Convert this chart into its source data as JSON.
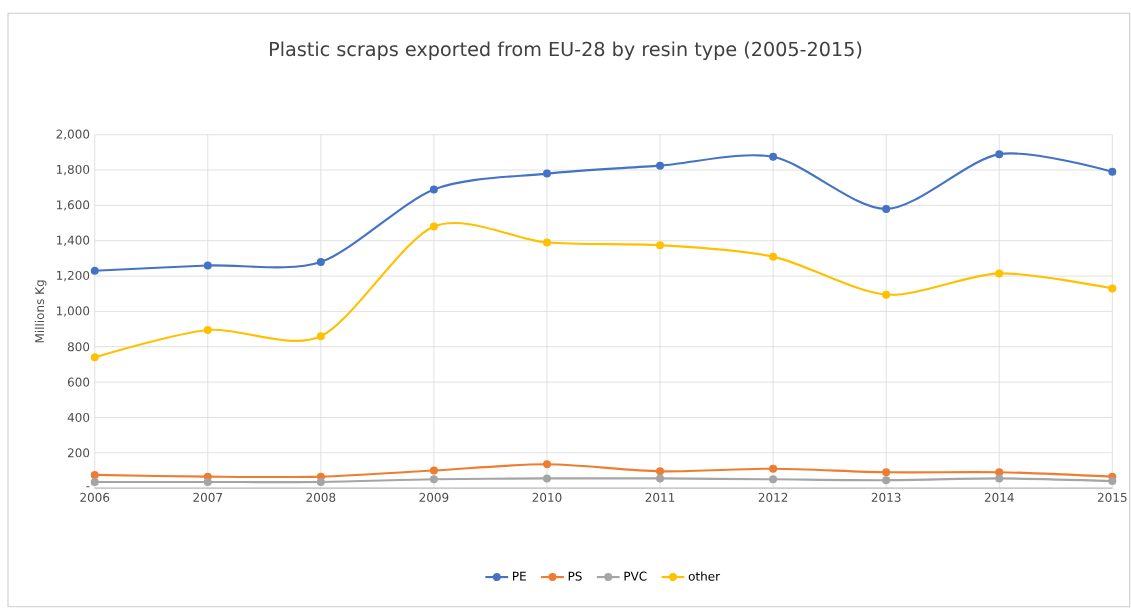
{
  "chart_data": {
    "type": "line",
    "title": "Plastic scraps exported from EU-28 by resin type (2005-2015)",
    "ylabel": "Millions Kg",
    "categories": [
      "2006",
      "2007",
      "2008",
      "2009",
      "2010",
      "2011",
      "2012",
      "2013",
      "2014",
      "2015"
    ],
    "series": [
      {
        "name": "PE",
        "color": "#4472c4",
        "values": [
          1230,
          1260,
          1280,
          1690,
          1780,
          1825,
          1875,
          1580,
          1890,
          1790
        ]
      },
      {
        "name": "PS",
        "color": "#ed7d31",
        "values": [
          75,
          65,
          65,
          100,
          135,
          95,
          110,
          90,
          90,
          65
        ]
      },
      {
        "name": "PVC",
        "color": "#a5a5a5",
        "values": [
          35,
          35,
          35,
          50,
          55,
          55,
          50,
          45,
          55,
          40
        ]
      },
      {
        "name": "other",
        "color": "#ffc000",
        "values": [
          740,
          895,
          860,
          1480,
          1390,
          1375,
          1310,
          1095,
          1215,
          1130
        ]
      }
    ],
    "ylim": [
      0,
      2000
    ],
    "yticks": [
      {
        "value": 0,
        "label": "-"
      },
      200,
      400,
      600,
      800,
      {
        "value": 1000,
        "label": "1,000"
      },
      {
        "value": 1200,
        "label": "1,200"
      },
      {
        "value": 1400,
        "label": "1,400"
      },
      {
        "value": 1600,
        "label": "1,600"
      },
      {
        "value": 1800,
        "label": "1,800"
      },
      {
        "value": 2000,
        "label": "2,000"
      }
    ],
    "grid": true,
    "legend": "bottom",
    "marker": "circle",
    "line_style": "solid"
  }
}
